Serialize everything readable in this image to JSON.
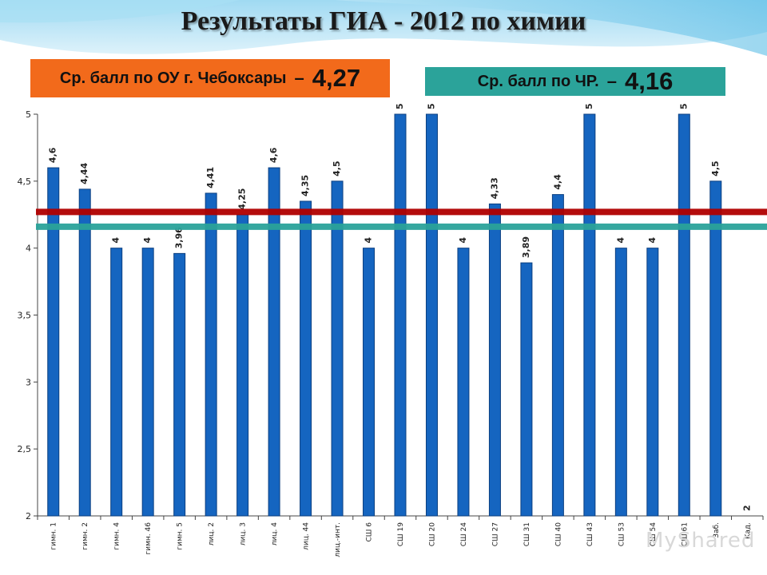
{
  "title": "Результаты ГИА - 2012 по химии",
  "banners": {
    "ou": {
      "label": "Ср. балл по ОУ г. Чебоксары",
      "dash": "–",
      "value": "4,27"
    },
    "cr": {
      "label": "Ср. балл по ЧР.",
      "dash": "–",
      "value": "4,16"
    }
  },
  "watermark": "MyShared",
  "colors": {
    "bar": "#1565c0",
    "bar_edge": "#0b3f80",
    "line_ou": "#b00000",
    "line_cr": "#2ba39a",
    "banner_ou": "#f26a1b",
    "banner_cr": "#2ba39a"
  },
  "chart_data": {
    "type": "bar",
    "categories": [
      "гимн. 1",
      "гимн. 2",
      "гимн. 4",
      "гимн. 46",
      "гимн. 5",
      "лиц. 2",
      "лиц. 3",
      "лиц. 4",
      "лиц. 44",
      "лиц.-инт.",
      "СШ 6",
      "СШ 19",
      "СШ 20",
      "СШ 24",
      "СШ 27",
      "СШ 31",
      "СШ 40",
      "СШ 43",
      "СШ 53",
      "СШ 54",
      "СШ 61",
      "Заб.",
      "Кад."
    ],
    "values": [
      4.6,
      4.44,
      4,
      4,
      3.96,
      4.41,
      4.25,
      4.6,
      4.35,
      4.5,
      4,
      5,
      5,
      4,
      4.33,
      3.89,
      4.4,
      5,
      4,
      4,
      5,
      4.5,
      2
    ],
    "value_labels": [
      "4,6",
      "4,44",
      "4",
      "4",
      "3,96",
      "4,41",
      "4,25",
      "4,6",
      "4,35",
      "4,5",
      "4",
      "5",
      "5",
      "4",
      "4,33",
      "3,89",
      "4,4",
      "5",
      "4",
      "4",
      "5",
      "4,5",
      "2"
    ],
    "ylim": [
      2,
      5
    ],
    "yticks": [
      2,
      2.5,
      3,
      3.5,
      4,
      4.5,
      5
    ],
    "ytick_labels": [
      "2",
      "2,5",
      "3",
      "3,5",
      "4",
      "4,5",
      "5"
    ],
    "reference_lines": [
      {
        "value": 4.27,
        "color": "#b00000"
      },
      {
        "value": 4.16,
        "color": "#2ba39a"
      }
    ],
    "grid": false,
    "legend": "none"
  }
}
